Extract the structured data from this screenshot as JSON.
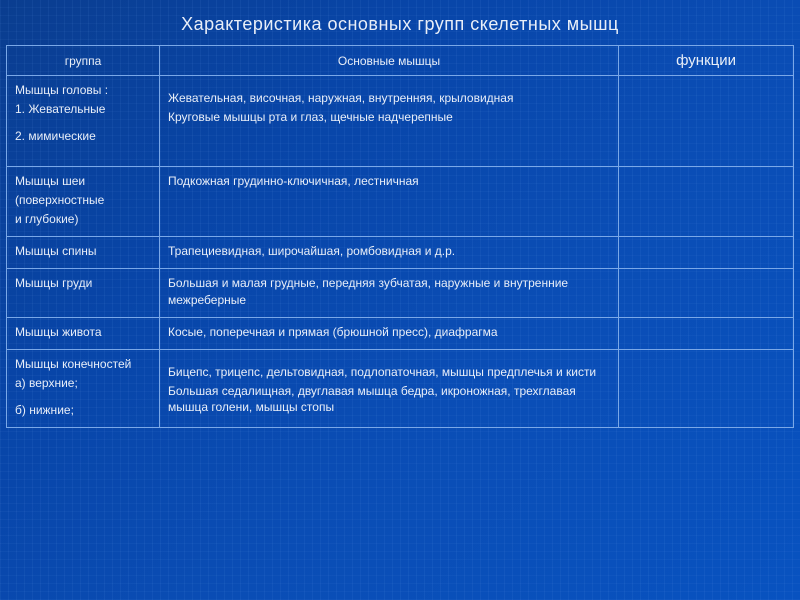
{
  "title": "Характеристика  основных групп  скелетных  мышц",
  "headers": {
    "group": "группа",
    "main": "Основные мышцы",
    "func": "функции"
  },
  "rows": [
    {
      "group": [
        "Мышцы  головы :",
        "1. Жевательные",
        "",
        "2. мимические"
      ],
      "main": [
        "",
        "Жевательная, височная, наружная, внутренняя, крыловидная",
        "Круговые  мышцы  рта  и  глаз,  щечные надчерепные"
      ],
      "func": ""
    },
    {
      "group": [
        "Мышцы  шеи",
        "(поверхностные",
        "и глубокие)"
      ],
      "main": [
        "Подкожная  грудинно-ключичная, лестничная"
      ],
      "func": ""
    },
    {
      "group": [
        "Мышцы  спины"
      ],
      "main": [
        "Трапециевидная,  широчайшая,  ромбовидная  и д.р."
      ],
      "func": ""
    },
    {
      "group": [
        "Мышцы  груди"
      ],
      "main": [
        "Большая  и  малая  грудные,  передняя  зубчатая, наружные  и  внутренние  межреберные"
      ],
      "func": ""
    },
    {
      "group": [
        "Мышцы  живота"
      ],
      "main": [
        "Косые,  поперечная  и  прямая (брюшной  пресс), диафрагма"
      ],
      "func": ""
    },
    {
      "group": [
        "Мышцы конечностей",
        "а) верхние;",
        "",
        "б) нижние;"
      ],
      "main": [
        "",
        "Бицепс, трицепс, дельтовидная, подлопаточная, мышцы предплечья и кисти",
        "Большая  седалищная, двуглавая мышца бедра, икроножная, трехглавая мышца голени, мышцы стопы"
      ],
      "func": ""
    }
  ]
}
